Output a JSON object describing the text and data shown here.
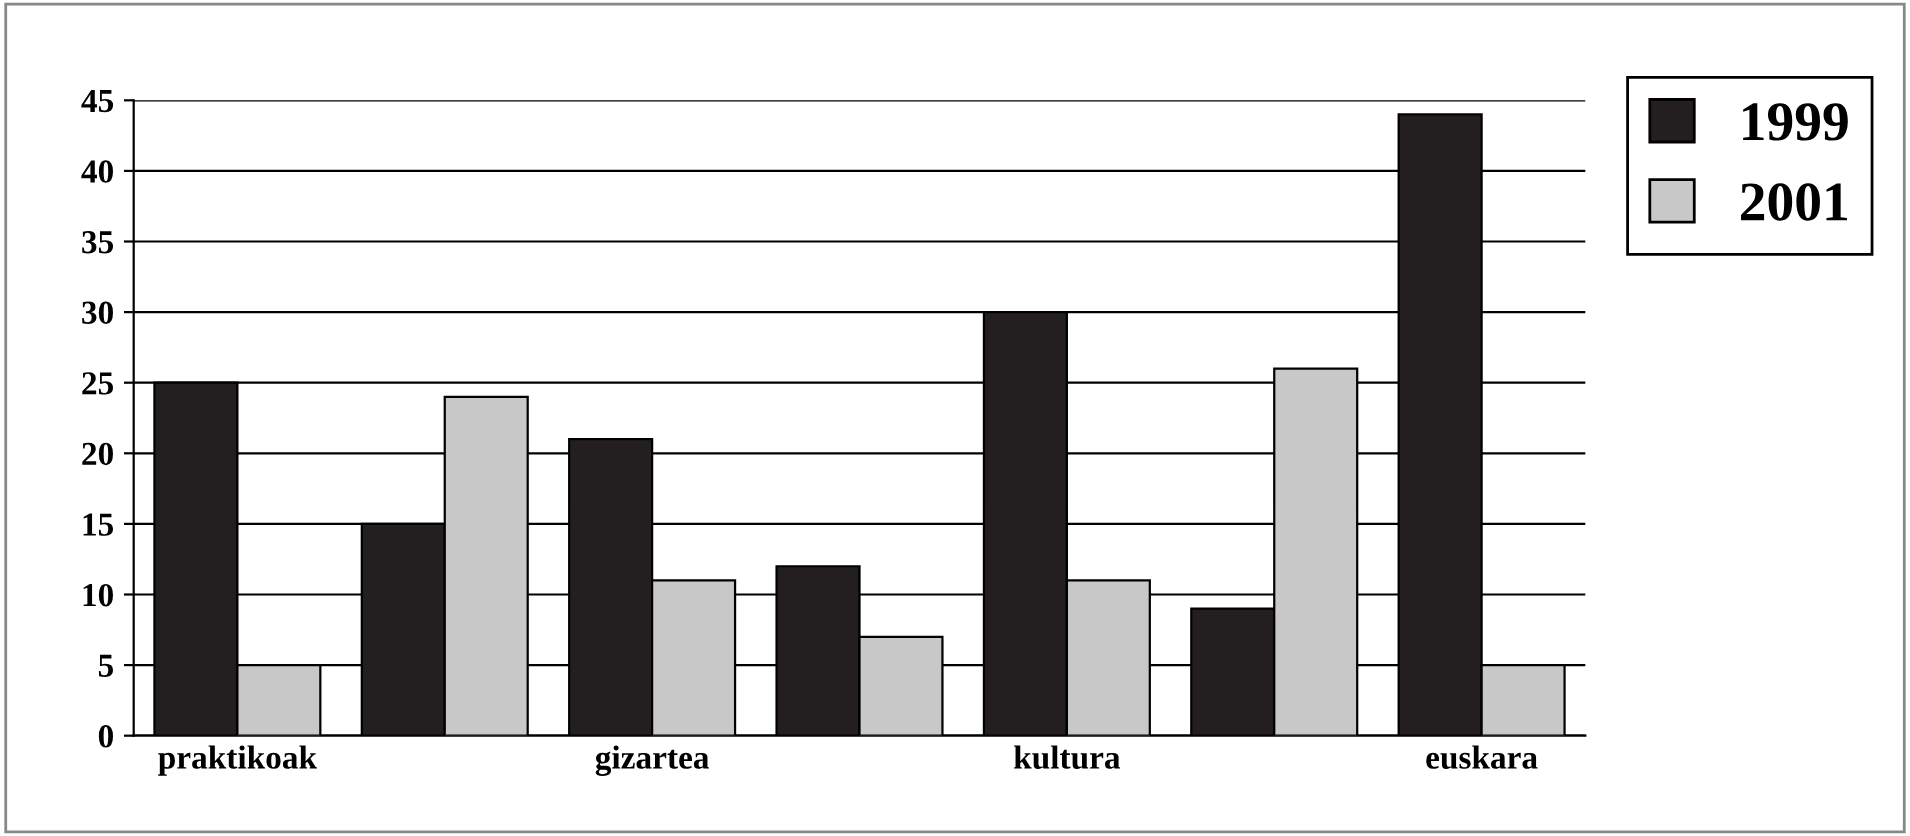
{
  "chart_data": {
    "type": "bar",
    "categories": [
      "praktikoak",
      null,
      "gizartea",
      null,
      "kultura",
      null,
      "euskara"
    ],
    "series": [
      {
        "name": "1999",
        "color": "#231f20",
        "values": [
          25,
          15,
          21,
          12,
          30,
          9,
          44
        ]
      },
      {
        "name": "2001",
        "color": "#c8c8c8",
        "values": [
          5,
          24,
          11,
          7,
          11,
          26,
          5
        ]
      }
    ],
    "ylim": [
      0,
      45
    ],
    "yticks": [
      0,
      5,
      10,
      15,
      20,
      25,
      30,
      35,
      40,
      45
    ],
    "grid": "y",
    "legend": "top right"
  }
}
